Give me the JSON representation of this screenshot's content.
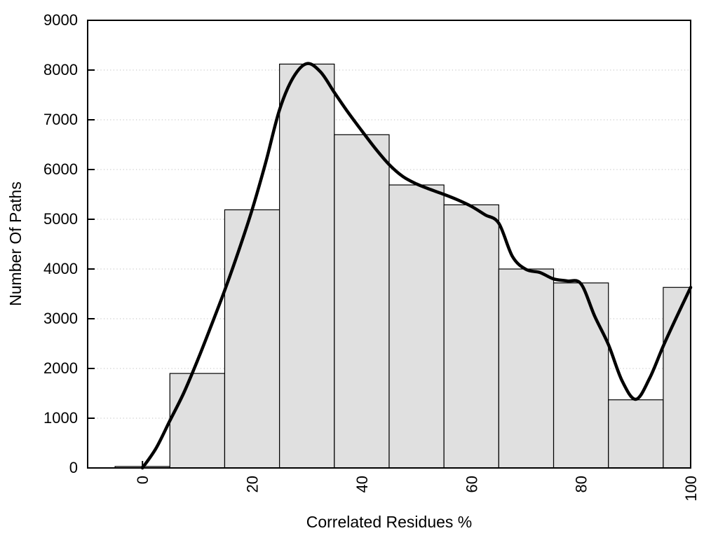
{
  "chart_data": {
    "type": "bar",
    "title": "",
    "xlabel": "Correlated Residues %",
    "ylabel": "Number Of Paths",
    "xlim": [
      -10,
      100
    ],
    "ylim": [
      0,
      9000
    ],
    "x_ticks": [
      0,
      20,
      40,
      60,
      80,
      100
    ],
    "y_ticks": [
      0,
      1000,
      2000,
      3000,
      4000,
      5000,
      6000,
      7000,
      8000,
      9000
    ],
    "grid": "horizontal-dotted",
    "legend": "none",
    "x_tick_label_rotation": -90,
    "bars": [
      {
        "x0": -5,
        "x1": 5,
        "value": 30
      },
      {
        "x0": 5,
        "x1": 15,
        "value": 1900
      },
      {
        "x0": 15,
        "x1": 25,
        "value": 5190
      },
      {
        "x0": 25,
        "x1": 35,
        "value": 8120
      },
      {
        "x0": 35,
        "x1": 45,
        "value": 6700
      },
      {
        "x0": 45,
        "x1": 55,
        "value": 5690
      },
      {
        "x0": 55,
        "x1": 65,
        "value": 5290
      },
      {
        "x0": 65,
        "x1": 75,
        "value": 4000
      },
      {
        "x0": 75,
        "x1": 85,
        "value": 3720
      },
      {
        "x0": 85,
        "x1": 95,
        "value": 1370
      },
      {
        "x0": 95,
        "x1": 100,
        "value": 3630
      }
    ],
    "curve": {
      "name": "smoothed-density-curve",
      "x": [
        0,
        2.5,
        5,
        7.5,
        10,
        12.5,
        15,
        17.5,
        20,
        22.5,
        25,
        27.5,
        30,
        32.5,
        35,
        37.5,
        40,
        42.5,
        45,
        47.5,
        50,
        52.5,
        55,
        57.5,
        60,
        62.5,
        65,
        67.5,
        70,
        72.5,
        75,
        77.5,
        80,
        82.5,
        85,
        87.5,
        90,
        92.5,
        95,
        97.5,
        100
      ],
      "y": [
        0,
        400,
        950,
        1500,
        2150,
        2850,
        3570,
        4350,
        5190,
        6150,
        7200,
        7850,
        8130,
        7960,
        7550,
        7150,
        6780,
        6420,
        6100,
        5860,
        5710,
        5600,
        5500,
        5390,
        5260,
        5090,
        4920,
        4250,
        3990,
        3930,
        3800,
        3760,
        3700,
        3050,
        2480,
        1750,
        1380,
        1800,
        2450,
        3050,
        3630
      ]
    },
    "colors": {
      "background": "#ffffff",
      "bar_fill": "#e0e0e0",
      "bar_border": "#000000",
      "curve": "#000000",
      "grid": "#bdbdbd",
      "axis": "#000000",
      "text": "#000000"
    }
  }
}
